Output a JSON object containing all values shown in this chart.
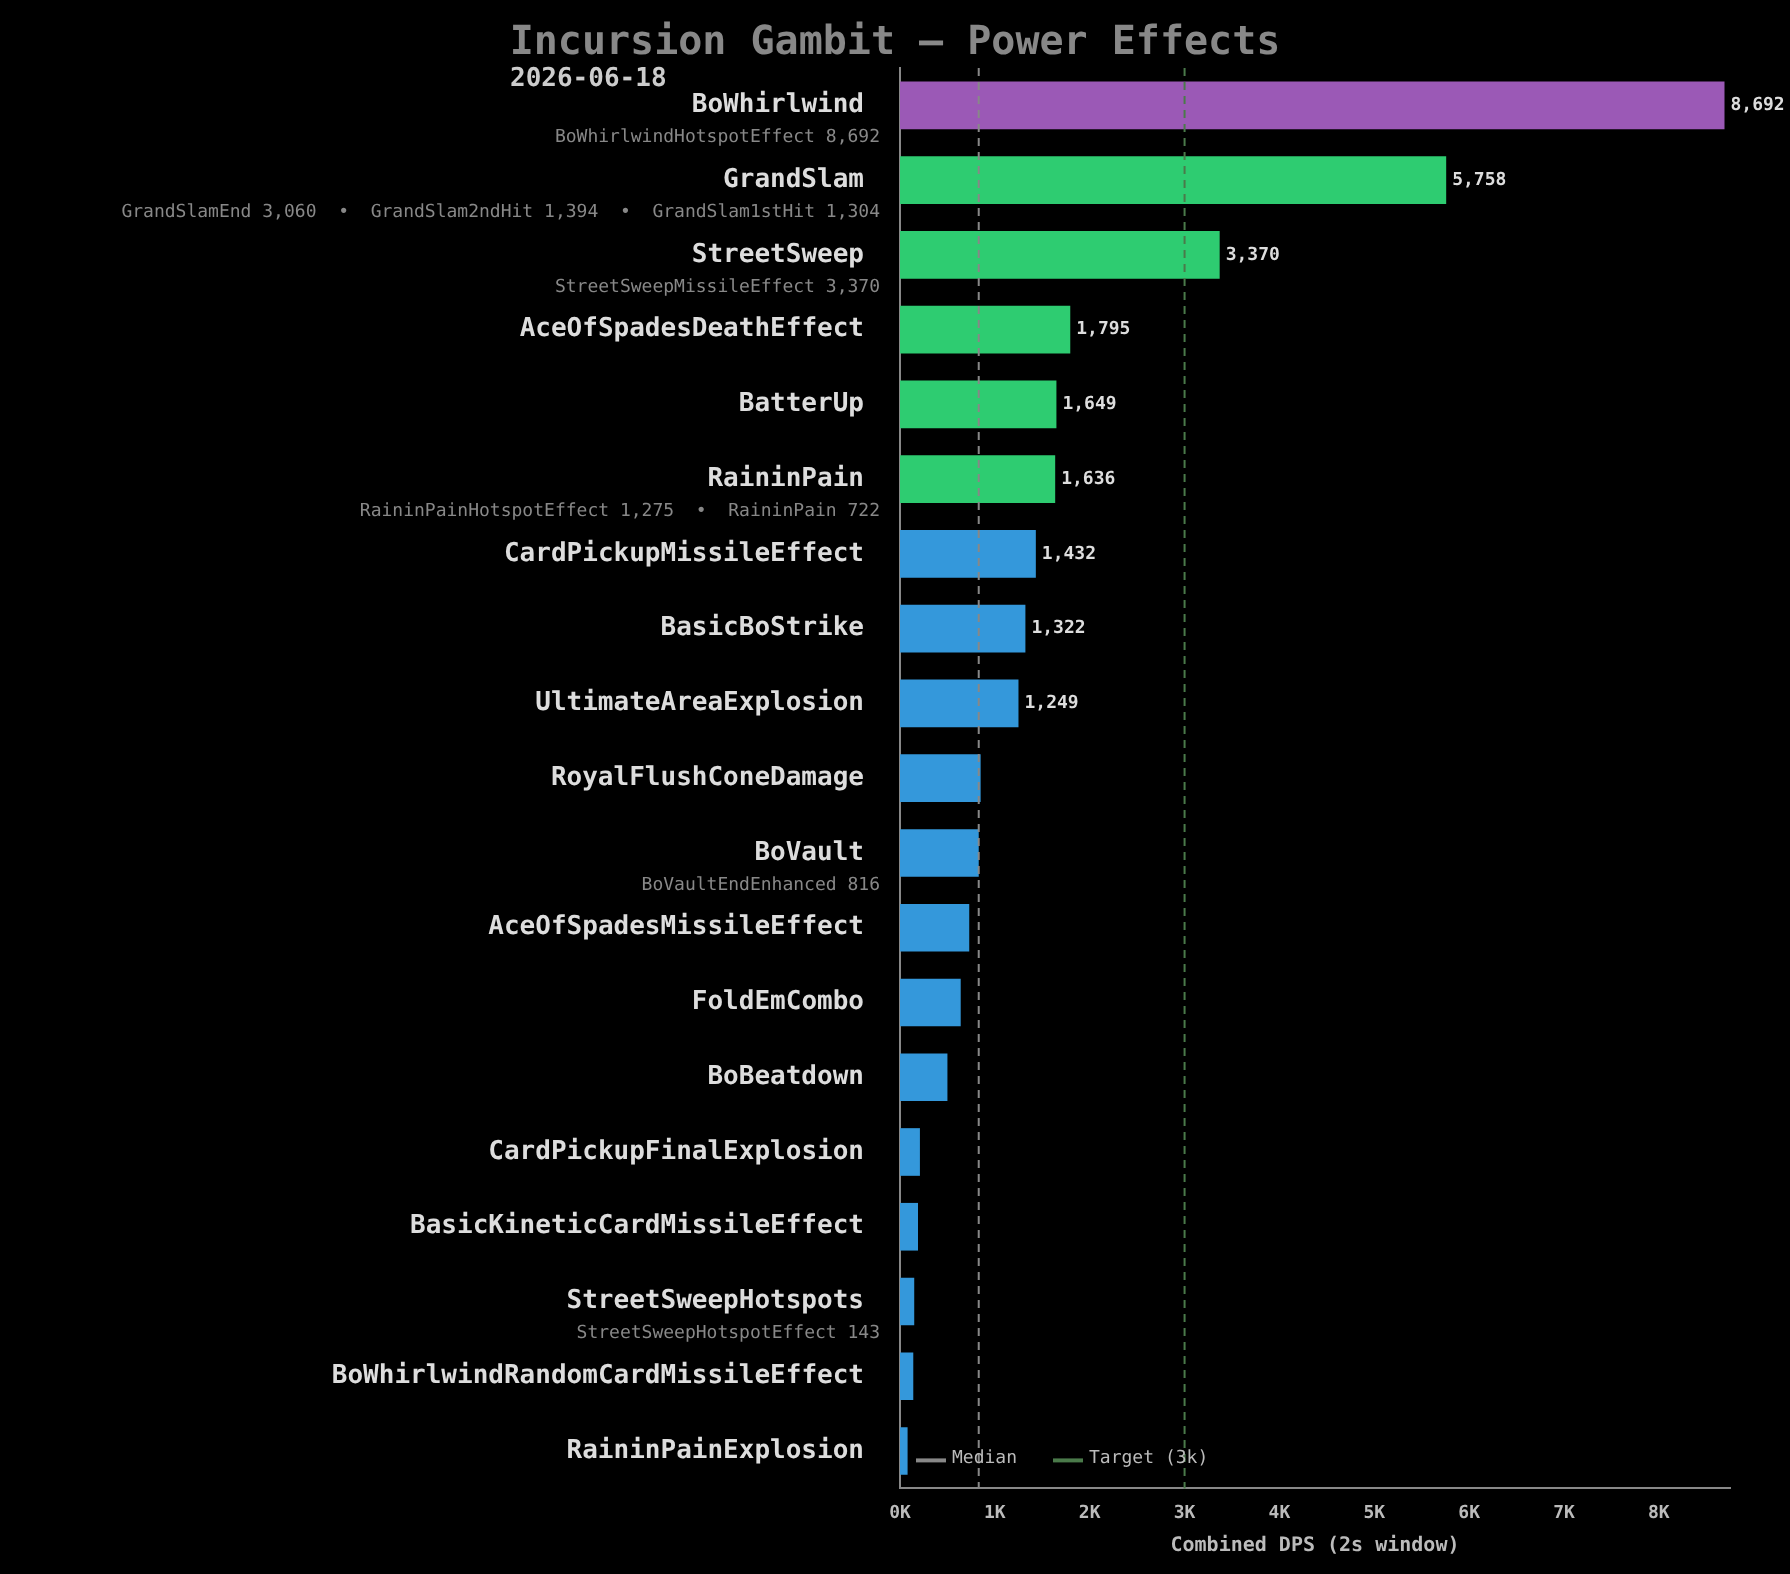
{
  "chart_data": {
    "type": "bar",
    "orientation": "horizontal",
    "title": "Incursion Gambit — Power Effects",
    "subtitle": "2026-06-18",
    "xlabel": "Combined DPS (2s window)",
    "categories": [
      "BoWhirlwind",
      "GrandSlam",
      "StreetSweep",
      "AceOfSpadesDeathEffect",
      "BatterUp",
      "RaininPain",
      "CardPickupMissileEffect",
      "BasicBoStrike",
      "UltimateAreaExplosion",
      "RoyalFlushConeDamage",
      "BoVault",
      "AceOfSpadesMissileEffect",
      "FoldEmCombo",
      "BoBeatdown",
      "CardPickupFinalExplosion",
      "BasicKineticCardMissileEffect",
      "StreetSweepHotspots",
      "BoWhirlwindRandomCardMissileEffect",
      "RaininPainExplosion"
    ],
    "values": [
      8692,
      5758,
      3370,
      1795,
      1649,
      1636,
      1432,
      1322,
      1249,
      850,
      830,
      730,
      640,
      500,
      210,
      190,
      150,
      140,
      80
    ],
    "value_labels": [
      "8,692",
      "5,758",
      "3,370",
      "1,795",
      "1,649",
      "1,636",
      "1,432",
      "1,322",
      "1,249",
      null,
      null,
      null,
      null,
      null,
      null,
      null,
      null,
      null,
      null
    ],
    "colors": [
      "#9b59b6",
      "#2ecc71",
      "#2ecc71",
      "#2ecc71",
      "#2ecc71",
      "#2ecc71",
      "#3498db",
      "#3498db",
      "#3498db",
      "#3498db",
      "#3498db",
      "#3498db",
      "#3498db",
      "#3498db",
      "#3498db",
      "#3498db",
      "#3498db",
      "#3498db",
      "#3498db"
    ],
    "xlim": [
      0,
      8750
    ],
    "xticks": [
      {
        "value": 0,
        "label": "0K"
      },
      {
        "value": 1000,
        "label": "1K"
      },
      {
        "value": 2000,
        "label": "2K"
      },
      {
        "value": 3000,
        "label": "3K"
      },
      {
        "value": 4000,
        "label": "4K"
      },
      {
        "value": 5000,
        "label": "5K"
      },
      {
        "value": 6000,
        "label": "6K"
      },
      {
        "value": 7000,
        "label": "7K"
      },
      {
        "value": 8000,
        "label": "8K"
      }
    ],
    "ref_lines": [
      {
        "axis": "x",
        "value": 830,
        "label": "Median",
        "color": "#888888",
        "line_style": "dashed"
      },
      {
        "axis": "x",
        "value": 3000,
        "label": "Target (3k)",
        "color": "#4a7a4a",
        "line_style": "dashed"
      }
    ],
    "annotations": [
      "BoWhirlwindHotspotEffect 8,692",
      "GrandSlamEnd 3,060  •  GrandSlam2ndHit 1,394  •  GrandSlam1stHit 1,304",
      "StreetSweepMissileEffect 3,370",
      "RaininPainHotspotEffect 1,275  •  RaininPain 722",
      "BoVaultEndEnhanced 816",
      "StreetSweepHotspotEffect 143"
    ],
    "legend": "bottom left",
    "grid": false
  }
}
